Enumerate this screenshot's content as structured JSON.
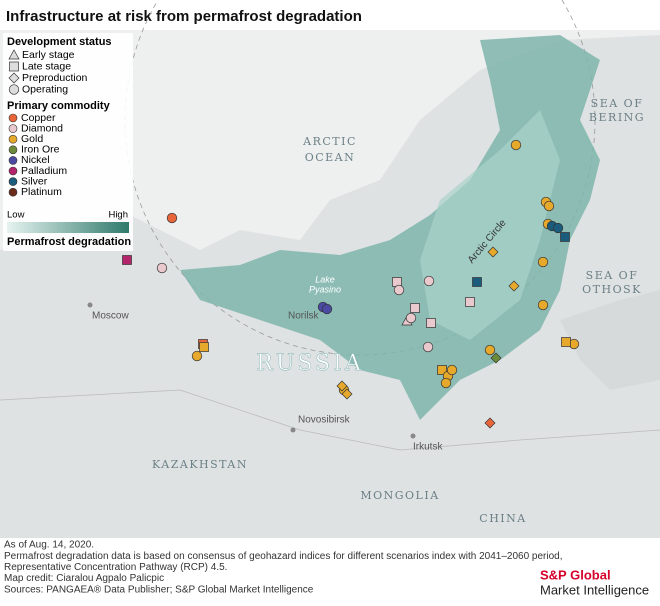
{
  "title": "Infrastructure at risk from permafrost degradation",
  "legend": {
    "development_status": {
      "title": "Development status",
      "items": [
        "Early stage",
        "Late stage",
        "Preproduction",
        "Operating"
      ]
    },
    "primary_commodity": {
      "title": "Primary commodity",
      "items": [
        {
          "name": "Copper",
          "color": "#e8653a"
        },
        {
          "name": "Diamond",
          "color": "#e9c9cd"
        },
        {
          "name": "Gold",
          "color": "#e6a92b"
        },
        {
          "name": "Iron Ore",
          "color": "#6c8b3a"
        },
        {
          "name": "Nickel",
          "color": "#4b4aa2"
        },
        {
          "name": "Palladium",
          "color": "#b3246b"
        },
        {
          "name": "Silver",
          "color": "#1b5b7b"
        },
        {
          "name": "Platinum",
          "color": "#6b2b1b"
        }
      ]
    },
    "permafrost": {
      "low": "Low",
      "high": "High",
      "title": "Permafrost degradation"
    }
  },
  "map_labels": {
    "arctic": "ARCTIC",
    "ocean": "OCEAN",
    "sea_of_bering_1": "SEA OF",
    "sea_of_bering_2": "BERING",
    "sea_of_othosk_1": "SEA OF",
    "sea_of_othosk_2": "OTHOSK",
    "lake_1": "Lake",
    "lake_2": "Pyasino",
    "arctic_circle": "Arctic Circle",
    "norilsk": "Norilsk",
    "moscow": "Moscow",
    "russia": "RUSSIA",
    "novosibirsk": "Novosibirsk",
    "irkutsk": "Irkutsk",
    "kazakhstan": "KAZAKHSTAN",
    "mongolia": "MONGOLIA",
    "china": "CHINA"
  },
  "footer": {
    "lines": [
      "As of Aug. 14, 2020.",
      "Permafrost degradation data is based on consensus of geohazard indices for different scenarios index with 2041–2060 period,",
      "Representative Concentration Pathway (RCP) 4.5.",
      "Map credit: Ciaralou Agpalo Palicpic",
      "Sources: PANGAEA® Data Publisher; S&P Global Market Intelligence"
    ],
    "logo_1": "S&P Global",
    "logo_2": "Market Intelligence"
  }
}
